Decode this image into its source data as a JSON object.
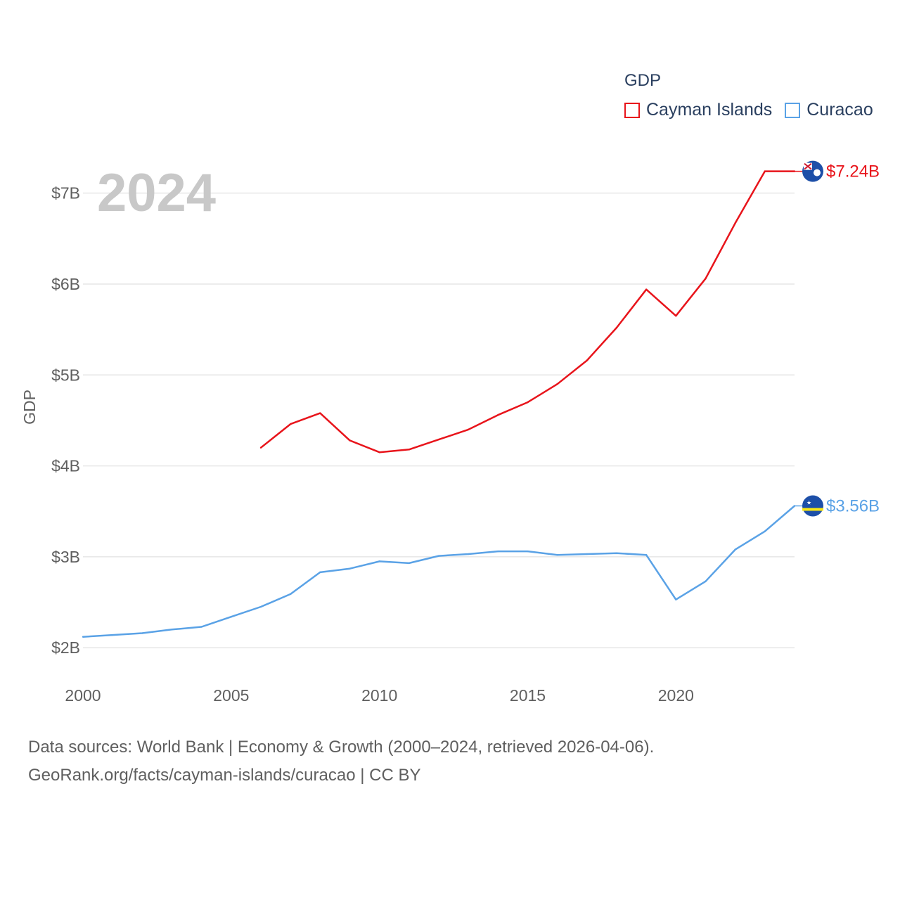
{
  "legend": {
    "title": "GDP",
    "items": [
      {
        "label": "Cayman Islands",
        "color": "#e8141b"
      },
      {
        "label": "Curacao",
        "color": "#5aa2e6"
      }
    ]
  },
  "year_watermark": "2024",
  "source": {
    "line1": "Data sources: World Bank | Economy & Growth (2000–2024, retrieved 2026-04-06).",
    "line2": "GeoRank.org/facts/cayman-islands/curacao | CC BY"
  },
  "chart_data": {
    "type": "line",
    "title": "",
    "xlabel": "",
    "ylabel": "GDP",
    "xlim": [
      2000,
      2024
    ],
    "ylim": [
      1.7,
      7.5
    ],
    "x_ticks": [
      2000,
      2005,
      2010,
      2015,
      2020
    ],
    "x_tick_labels": [
      "2000",
      "2005",
      "2010",
      "2015",
      "2020"
    ],
    "y_ticks": [
      2,
      3,
      4,
      5,
      6,
      7
    ],
    "y_tick_labels": [
      "$2B",
      "$3B",
      "$4B",
      "$5B",
      "$6B",
      "$7B"
    ],
    "grid": true,
    "series": [
      {
        "name": "Cayman Islands",
        "color": "#e8141b",
        "x": [
          2006,
          2007,
          2008,
          2009,
          2010,
          2011,
          2012,
          2013,
          2014,
          2015,
          2016,
          2017,
          2018,
          2019,
          2020,
          2021,
          2022,
          2023,
          2024
        ],
        "values": [
          4.2,
          4.46,
          4.58,
          4.28,
          4.15,
          4.18,
          4.29,
          4.4,
          4.56,
          4.7,
          4.9,
          5.16,
          5.52,
          5.94,
          5.65,
          6.06,
          6.67,
          7.24,
          7.24
        ],
        "end_label": "$7.24B",
        "flag_icon": "cayman-islands-flag-icon"
      },
      {
        "name": "Curacao",
        "color": "#5aa2e6",
        "x": [
          2000,
          2001,
          2002,
          2003,
          2004,
          2005,
          2006,
          2007,
          2008,
          2009,
          2010,
          2011,
          2012,
          2013,
          2014,
          2015,
          2016,
          2017,
          2018,
          2019,
          2020,
          2021,
          2022,
          2023,
          2024
        ],
        "values": [
          2.12,
          2.14,
          2.16,
          2.2,
          2.23,
          2.34,
          2.45,
          2.59,
          2.83,
          2.87,
          2.95,
          2.93,
          3.01,
          3.03,
          3.06,
          3.06,
          3.02,
          3.03,
          3.04,
          3.02,
          2.53,
          2.73,
          3.08,
          3.28,
          3.56
        ],
        "end_label": "$3.56B",
        "flag_icon": "curacao-flag-icon"
      }
    ]
  }
}
